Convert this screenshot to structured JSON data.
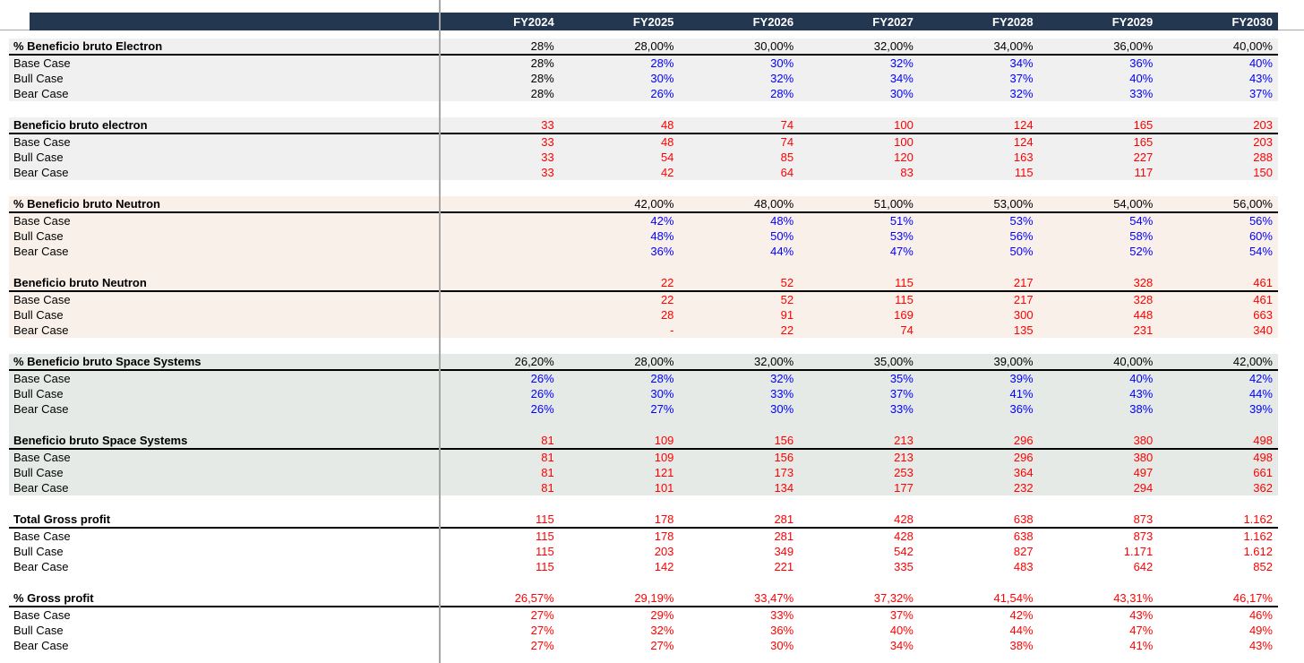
{
  "columns": [
    "FY2024",
    "FY2025",
    "FY2026",
    "FY2027",
    "FY2028",
    "FY2029",
    "FY2030"
  ],
  "palette": {
    "header_bg": "#233750",
    "gray": "#f0f0f0",
    "peach": "#f9f0e9",
    "green": "#e5eae7",
    "white": "#ffffff",
    "black": "#000000",
    "red": "#ff0000",
    "blue": "#0000ff",
    "divider_gray": "#a6a6a6"
  },
  "blocks": [
    {
      "bg": "gray",
      "sections": [
        {
          "title": "% Beneficio bruto Electron",
          "header_color": "black",
          "header_values": [
            "28%",
            "28,00%",
            "30,00%",
            "32,00%",
            "34,00%",
            "36,00%",
            "40,00%"
          ],
          "rows": [
            {
              "label": "Base Case",
              "color": "blue",
              "colors": [
                "black",
                "blue",
                "blue",
                "blue",
                "blue",
                "blue",
                "blue"
              ],
              "values": [
                "28%",
                "28%",
                "30%",
                "32%",
                "34%",
                "36%",
                "40%"
              ]
            },
            {
              "label": "Bull Case",
              "color": "blue",
              "colors": [
                "black",
                "blue",
                "blue",
                "blue",
                "blue",
                "blue",
                "blue"
              ],
              "values": [
                "28%",
                "30%",
                "32%",
                "34%",
                "37%",
                "40%",
                "43%"
              ]
            },
            {
              "label": "Bear Case",
              "color": "blue",
              "colors": [
                "black",
                "blue",
                "blue",
                "blue",
                "blue",
                "blue",
                "blue"
              ],
              "values": [
                "28%",
                "26%",
                "28%",
                "30%",
                "32%",
                "33%",
                "37%"
              ]
            }
          ]
        }
      ]
    },
    {
      "bg": "gray",
      "sections": [
        {
          "title": "Beneficio bruto electron",
          "header_color": "red",
          "header_values": [
            "33",
            "48",
            "74",
            "100",
            "124",
            "165",
            "203"
          ],
          "rows": [
            {
              "label": "Base Case",
              "color": "red",
              "values": [
                "33",
                "48",
                "74",
                "100",
                "124",
                "165",
                "203"
              ]
            },
            {
              "label": "Bull Case",
              "color": "red",
              "values": [
                "33",
                "54",
                "85",
                "120",
                "163",
                "227",
                "288"
              ]
            },
            {
              "label": "Bear Case",
              "color": "red",
              "values": [
                "33",
                "42",
                "64",
                "83",
                "115",
                "117",
                "150"
              ]
            }
          ]
        }
      ]
    },
    {
      "bg": "peach",
      "sections": [
        {
          "title": "% Beneficio bruto Neutron",
          "header_color": "black",
          "header_values": [
            "",
            "42,00%",
            "48,00%",
            "51,00%",
            "53,00%",
            "54,00%",
            "56,00%"
          ],
          "rows": [
            {
              "label": "Base Case",
              "color": "blue",
              "values": [
                "",
                "42%",
                "48%",
                "51%",
                "53%",
                "54%",
                "56%"
              ]
            },
            {
              "label": "Bull Case",
              "color": "blue",
              "values": [
                "",
                "48%",
                "50%",
                "53%",
                "56%",
                "58%",
                "60%"
              ]
            },
            {
              "label": "Bear Case",
              "color": "blue",
              "values": [
                "",
                "36%",
                "44%",
                "47%",
                "50%",
                "52%",
                "54%"
              ]
            }
          ]
        },
        {
          "title": "Beneficio bruto Neutron",
          "header_color": "red",
          "header_values": [
            "",
            "22",
            "52",
            "115",
            "217",
            "328",
            "461"
          ],
          "rows": [
            {
              "label": "Base Case",
              "color": "red",
              "values": [
                "",
                "22",
                "52",
                "115",
                "217",
                "328",
                "461"
              ]
            },
            {
              "label": "Bull Case",
              "color": "red",
              "values": [
                "",
                "28",
                "91",
                "169",
                "300",
                "448",
                "663"
              ]
            },
            {
              "label": "Bear Case",
              "color": "red",
              "values": [
                "",
                "-",
                "22",
                "74",
                "135",
                "231",
                "340"
              ]
            }
          ]
        }
      ]
    },
    {
      "bg": "green",
      "sections": [
        {
          "title": "% Beneficio bruto Space Systems",
          "header_color": "black",
          "header_values": [
            "26,20%",
            "28,00%",
            "32,00%",
            "35,00%",
            "39,00%",
            "40,00%",
            "42,00%"
          ],
          "rows": [
            {
              "label": "Base Case",
              "color": "blue",
              "values": [
                "26%",
                "28%",
                "32%",
                "35%",
                "39%",
                "40%",
                "42%"
              ]
            },
            {
              "label": "Bull Case",
              "color": "blue",
              "values": [
                "26%",
                "30%",
                "33%",
                "37%",
                "41%",
                "43%",
                "44%"
              ]
            },
            {
              "label": "Bear Case",
              "color": "blue",
              "values": [
                "26%",
                "27%",
                "30%",
                "33%",
                "36%",
                "38%",
                "39%"
              ]
            }
          ]
        },
        {
          "title": "Beneficio bruto Space Systems",
          "header_color": "red",
          "header_values": [
            "81",
            "109",
            "156",
            "213",
            "296",
            "380",
            "498"
          ],
          "rows": [
            {
              "label": "Base Case",
              "color": "red",
              "values": [
                "81",
                "109",
                "156",
                "213",
                "296",
                "380",
                "498"
              ]
            },
            {
              "label": "Bull Case",
              "color": "red",
              "values": [
                "81",
                "121",
                "173",
                "253",
                "364",
                "497",
                "661"
              ]
            },
            {
              "label": "Bear Case",
              "color": "red",
              "values": [
                "81",
                "101",
                "134",
                "177",
                "232",
                "294",
                "362"
              ]
            }
          ]
        }
      ]
    },
    {
      "bg": "white",
      "sections": [
        {
          "title": "Total Gross profit",
          "header_color": "red",
          "header_values": [
            "115",
            "178",
            "281",
            "428",
            "638",
            "873",
            "1.162"
          ],
          "rows": [
            {
              "label": "Base Case",
              "color": "red",
              "values": [
                "115",
                "178",
                "281",
                "428",
                "638",
                "873",
                "1.162"
              ]
            },
            {
              "label": "Bull Case",
              "color": "red",
              "values": [
                "115",
                "203",
                "349",
                "542",
                "827",
                "1.171",
                "1.612"
              ]
            },
            {
              "label": "Bear Case",
              "color": "red",
              "values": [
                "115",
                "142",
                "221",
                "335",
                "483",
                "642",
                "852"
              ]
            }
          ]
        }
      ]
    },
    {
      "bg": "white",
      "sections": [
        {
          "title": "% Gross profit",
          "header_color": "red",
          "header_values": [
            "26,57%",
            "29,19%",
            "33,47%",
            "37,32%",
            "41,54%",
            "43,31%",
            "46,17%"
          ],
          "rows": [
            {
              "label": "Base Case",
              "color": "red",
              "values": [
                "27%",
                "29%",
                "33%",
                "37%",
                "42%",
                "43%",
                "46%"
              ]
            },
            {
              "label": "Bull Case",
              "color": "red",
              "values": [
                "27%",
                "32%",
                "36%",
                "40%",
                "44%",
                "47%",
                "49%"
              ]
            },
            {
              "label": "Bear Case",
              "color": "red",
              "values": [
                "27%",
                "27%",
                "30%",
                "34%",
                "38%",
                "41%",
                "43%"
              ]
            }
          ]
        }
      ]
    }
  ]
}
